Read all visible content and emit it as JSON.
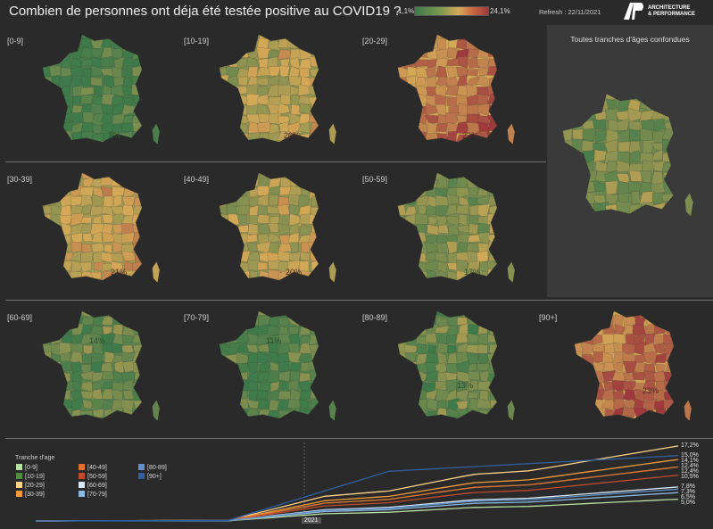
{
  "header": {
    "title": "Combien de personnes ont déja été testée positive au COVID19 ?",
    "legend_min": "1,1%",
    "legend_max": "24,1%",
    "refresh": "Refresh : 22/11/2021",
    "logo_text_1": "ARCHITECTURE",
    "logo_text_2": "& PERFORMANCE"
  },
  "maps": [
    {
      "label": "[0-9]",
      "pct": "8%",
      "heat": 0.05
    },
    {
      "label": "[10-19]",
      "pct": "20%",
      "heat": 0.45
    },
    {
      "label": "[20-29]",
      "pct": "23%",
      "heat": 0.85
    },
    {
      "label": "[30-39]",
      "pct": "21%",
      "heat": 0.55
    },
    {
      "label": "[40-49]",
      "pct": "20%",
      "heat": 0.45
    },
    {
      "label": "[50-59]",
      "pct": "17%",
      "heat": 0.3
    },
    {
      "label": "[60-69]",
      "pct": "14%",
      "heat": 0.15
    },
    {
      "label": "[70-79]",
      "pct": "11%",
      "heat": 0.1
    },
    {
      "label": "[80-89]",
      "pct": "13%",
      "heat": 0.18
    },
    {
      "label": "[90+]",
      "pct": "23%",
      "heat": 0.9
    }
  ],
  "all_ages": {
    "label": "Toutes tranches d'âges confondues",
    "heat": 0.25
  },
  "colors": {
    "low": "#3f7a4a",
    "mid": "#d4a957",
    "high": "#9e3a3d"
  },
  "chart_data": {
    "type": "line",
    "legend_title": "Tranche d'age",
    "x_label_current": "2021",
    "series": [
      {
        "name": "[0-9]",
        "color": "#b8e0a0",
        "end": 5.0,
        "end_label": "5,0%"
      },
      {
        "name": "[10-19]",
        "color": "#4f8c3e",
        "end": 12.4,
        "end_label": "12,4%"
      },
      {
        "name": "[20-29]",
        "color": "#ffd28a",
        "end": 17.2,
        "end_label": "17,2%"
      },
      {
        "name": "[30-39]",
        "color": "#f09a3a",
        "end": 14.1,
        "end_label": "14,1%"
      },
      {
        "name": "[40-49]",
        "color": "#e07030",
        "end": 12.4,
        "end_label": "12,4%"
      },
      {
        "name": "[50-59]",
        "color": "#c04a2a",
        "end": 10.5,
        "end_label": "10,5%"
      },
      {
        "name": "[60-69]",
        "color": "#d8e8f4",
        "end": 7.8,
        "end_label": "7,8%"
      },
      {
        "name": "[70-79]",
        "color": "#8ab8e0",
        "end": 6.5,
        "end_label": "6,5%"
      },
      {
        "name": "[80-89]",
        "color": "#5f90c8",
        "end": 7.3,
        "end_label": "7,3%"
      },
      {
        "name": "[90+]",
        "color": "#2f5f9e",
        "end": 15.0,
        "end_label": "15,0%"
      }
    ]
  }
}
